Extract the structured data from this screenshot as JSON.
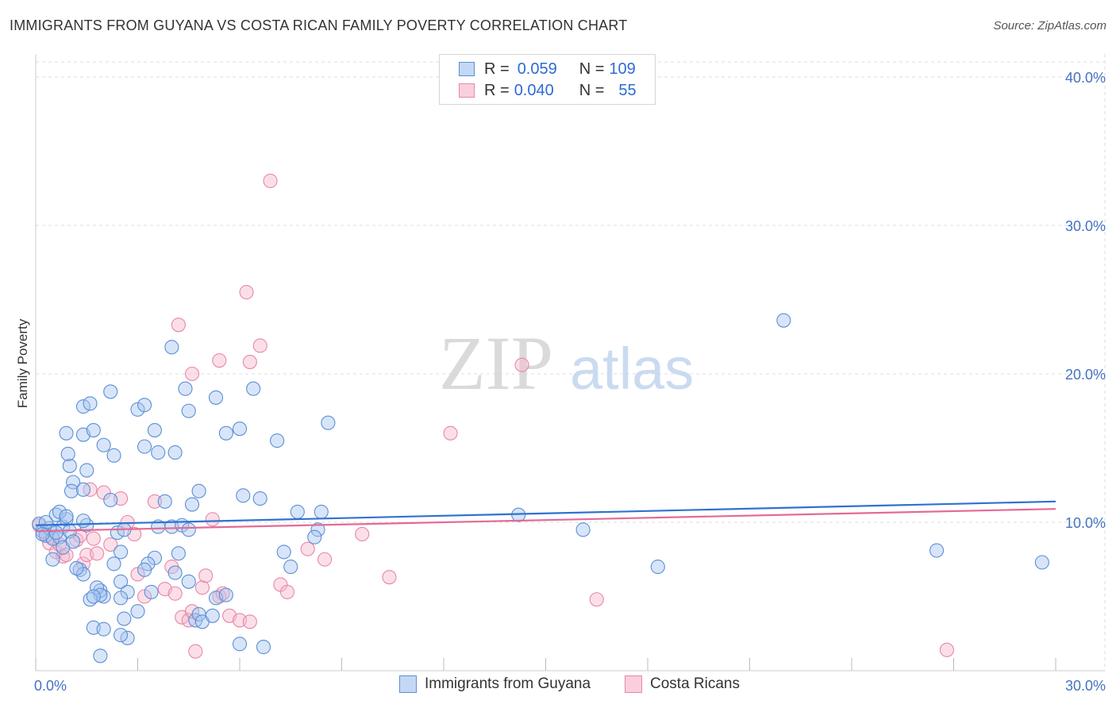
{
  "header": {
    "title": "IMMIGRANTS FROM GUYANA VS COSTA RICAN FAMILY POVERTY CORRELATION CHART",
    "source": "Source: ZipAtlas.com"
  },
  "watermark": {
    "zip": "ZIP",
    "atlas": "atlas"
  },
  "legend": {
    "rows": [
      {
        "r_label": "R =",
        "r_value": "0.059",
        "n_label": "N =",
        "n_value": "109"
      },
      {
        "r_label": "R =",
        "r_value": "0.040",
        "n_label": "N =",
        "n_value": "55"
      }
    ]
  },
  "colors": {
    "blue_fill": "#a9c6ef",
    "blue_stroke": "#5b8fd6",
    "blue_line": "#2f72d0",
    "pink_fill": "#f6b8cc",
    "pink_stroke": "#e887a8",
    "pink_line": "#e46a96",
    "grid": "#dddddd",
    "tick_text": "#4472c4"
  },
  "chart_data": {
    "type": "scatter",
    "title": "IMMIGRANTS FROM GUYANA VS COSTA RICAN FAMILY POVERTY CORRELATION CHART",
    "xlabel": "",
    "ylabel": "Family Poverty",
    "xlim": [
      0,
      30
    ],
    "ylim": [
      0,
      40
    ],
    "x_tick_labels": [
      "0.0%",
      "30.0%"
    ],
    "y_ticks": [
      10,
      20,
      30,
      40
    ],
    "y_tick_labels": [
      "10.0%",
      "20.0%",
      "30.0%",
      "40.0%"
    ],
    "series": [
      {
        "name": "Immigrants from Guyana",
        "R": 0.059,
        "N": 109,
        "trend": {
          "x": [
            0,
            30
          ],
          "y": [
            9.8,
            11.4
          ]
        },
        "points": [
          [
            0.1,
            9.9
          ],
          [
            0.2,
            9.4
          ],
          [
            0.3,
            9.1
          ],
          [
            0.4,
            9.6
          ],
          [
            0.5,
            8.9
          ],
          [
            0.6,
            10.5
          ],
          [
            0.7,
            9.0
          ],
          [
            0.8,
            9.7
          ],
          [
            0.9,
            10.2
          ],
          [
            0.3,
            10.0
          ],
          [
            0.2,
            9.2
          ],
          [
            0.5,
            7.5
          ],
          [
            0.6,
            9.3
          ],
          [
            0.7,
            10.7
          ],
          [
            0.8,
            8.3
          ],
          [
            0.9,
            10.4
          ],
          [
            1.0,
            9.4
          ],
          [
            1.1,
            8.7
          ],
          [
            1.0,
            13.8
          ],
          [
            1.1,
            12.7
          ],
          [
            1.05,
            12.1
          ],
          [
            0.95,
            14.6
          ],
          [
            1.4,
            15.9
          ],
          [
            1.5,
            13.5
          ],
          [
            1.4,
            12.2
          ],
          [
            1.5,
            9.8
          ],
          [
            1.4,
            10.1
          ],
          [
            1.3,
            6.8
          ],
          [
            0.9,
            16.0
          ],
          [
            1.4,
            17.8
          ],
          [
            1.6,
            18.0
          ],
          [
            1.4,
            6.5
          ],
          [
            1.7,
            16.2
          ],
          [
            2.2,
            18.8
          ],
          [
            2.2,
            11.5
          ],
          [
            2.0,
            15.2
          ],
          [
            2.3,
            14.5
          ],
          [
            2.4,
            9.3
          ],
          [
            2.6,
            9.5
          ],
          [
            2.5,
            8.0
          ],
          [
            2.3,
            7.2
          ],
          [
            2.5,
            6.0
          ],
          [
            2.7,
            5.3
          ],
          [
            2.5,
            4.9
          ],
          [
            2.6,
            3.5
          ],
          [
            2.7,
            2.2
          ],
          [
            2.5,
            2.4
          ],
          [
            2.0,
            5.0
          ],
          [
            1.9,
            5.4
          ],
          [
            1.8,
            5.6
          ],
          [
            1.9,
            5.1
          ],
          [
            1.6,
            4.8
          ],
          [
            1.7,
            2.9
          ],
          [
            1.9,
            1.0
          ],
          [
            1.2,
            6.9
          ],
          [
            3.0,
            17.6
          ],
          [
            3.2,
            17.9
          ],
          [
            3.2,
            15.1
          ],
          [
            3.6,
            14.7
          ],
          [
            3.5,
            16.2
          ],
          [
            4.1,
            14.7
          ],
          [
            4.0,
            9.7
          ],
          [
            3.6,
            9.7
          ],
          [
            3.5,
            7.6
          ],
          [
            3.3,
            7.2
          ],
          [
            3.2,
            6.8
          ],
          [
            3.4,
            5.3
          ],
          [
            3.8,
            11.4
          ],
          [
            4.3,
            9.8
          ],
          [
            4.5,
            9.5
          ],
          [
            4.2,
            7.9
          ],
          [
            4.1,
            6.6
          ],
          [
            4.5,
            6.0
          ],
          [
            4.7,
            3.4
          ],
          [
            4.8,
            3.8
          ],
          [
            4.9,
            3.3
          ],
          [
            5.3,
            4.9
          ],
          [
            5.6,
            5.1
          ],
          [
            5.2,
            3.7
          ],
          [
            4.5,
            17.5
          ],
          [
            4.4,
            19.0
          ],
          [
            5.3,
            18.4
          ],
          [
            5.6,
            16.0
          ],
          [
            6.0,
            16.3
          ],
          [
            6.1,
            11.8
          ],
          [
            6.6,
            11.6
          ],
          [
            6.4,
            19.0
          ],
          [
            7.1,
            15.5
          ],
          [
            7.3,
            8.0
          ],
          [
            7.5,
            7.0
          ],
          [
            7.7,
            10.7
          ],
          [
            8.3,
            9.5
          ],
          [
            8.2,
            9.0
          ],
          [
            8.4,
            10.7
          ],
          [
            8.6,
            16.7
          ],
          [
            4.6,
            11.2
          ],
          [
            4.8,
            12.1
          ],
          [
            6.0,
            1.8
          ],
          [
            14.2,
            10.5
          ],
          [
            16.1,
            9.5
          ],
          [
            18.3,
            7.0
          ],
          [
            22.0,
            23.6
          ],
          [
            26.5,
            8.1
          ],
          [
            29.6,
            7.3
          ],
          [
            4.0,
            21.8
          ],
          [
            3.0,
            4.0
          ],
          [
            2.0,
            2.8
          ],
          [
            1.7,
            5.0
          ],
          [
            6.7,
            1.6
          ]
        ]
      },
      {
        "name": "Costa Ricans",
        "R": 0.04,
        "N": 55,
        "trend": {
          "x": [
            0,
            30
          ],
          "y": [
            9.4,
            10.9
          ]
        },
        "points": [
          [
            0.1,
            9.8
          ],
          [
            0.3,
            9.2
          ],
          [
            0.4,
            8.6
          ],
          [
            0.5,
            9.0
          ],
          [
            0.6,
            8.0
          ],
          [
            0.7,
            8.5
          ],
          [
            0.8,
            7.7
          ],
          [
            0.9,
            7.8
          ],
          [
            1.2,
            8.8
          ],
          [
            1.3,
            9.1
          ],
          [
            1.4,
            7.2
          ],
          [
            1.5,
            7.8
          ],
          [
            1.6,
            12.2
          ],
          [
            1.7,
            8.9
          ],
          [
            1.8,
            7.9
          ],
          [
            2.2,
            8.5
          ],
          [
            2.0,
            12.0
          ],
          [
            2.5,
            11.6
          ],
          [
            2.7,
            10.0
          ],
          [
            2.9,
            9.2
          ],
          [
            3.0,
            6.5
          ],
          [
            3.2,
            5.0
          ],
          [
            3.5,
            11.4
          ],
          [
            3.8,
            5.5
          ],
          [
            4.0,
            7.0
          ],
          [
            4.1,
            5.2
          ],
          [
            4.3,
            3.6
          ],
          [
            4.5,
            3.4
          ],
          [
            4.6,
            4.0
          ],
          [
            4.9,
            5.6
          ],
          [
            5.0,
            6.4
          ],
          [
            5.2,
            10.2
          ],
          [
            5.4,
            5.0
          ],
          [
            5.5,
            5.2
          ],
          [
            5.7,
            3.7
          ],
          [
            6.0,
            3.4
          ],
          [
            6.3,
            3.3
          ],
          [
            7.2,
            5.8
          ],
          [
            7.4,
            5.3
          ],
          [
            8.0,
            8.2
          ],
          [
            8.5,
            7.5
          ],
          [
            9.6,
            9.2
          ],
          [
            10.4,
            6.3
          ],
          [
            4.2,
            23.3
          ],
          [
            4.6,
            20.0
          ],
          [
            5.4,
            20.9
          ],
          [
            6.2,
            25.5
          ],
          [
            6.3,
            20.8
          ],
          [
            6.6,
            21.9
          ],
          [
            6.9,
            33.0
          ],
          [
            12.2,
            16.0
          ],
          [
            14.3,
            20.6
          ],
          [
            16.5,
            4.8
          ],
          [
            26.8,
            1.4
          ],
          [
            4.7,
            1.3
          ]
        ]
      }
    ]
  },
  "bottom_legend": [
    {
      "label": "Immigrants from Guyana"
    },
    {
      "label": "Costa Ricans"
    }
  ]
}
